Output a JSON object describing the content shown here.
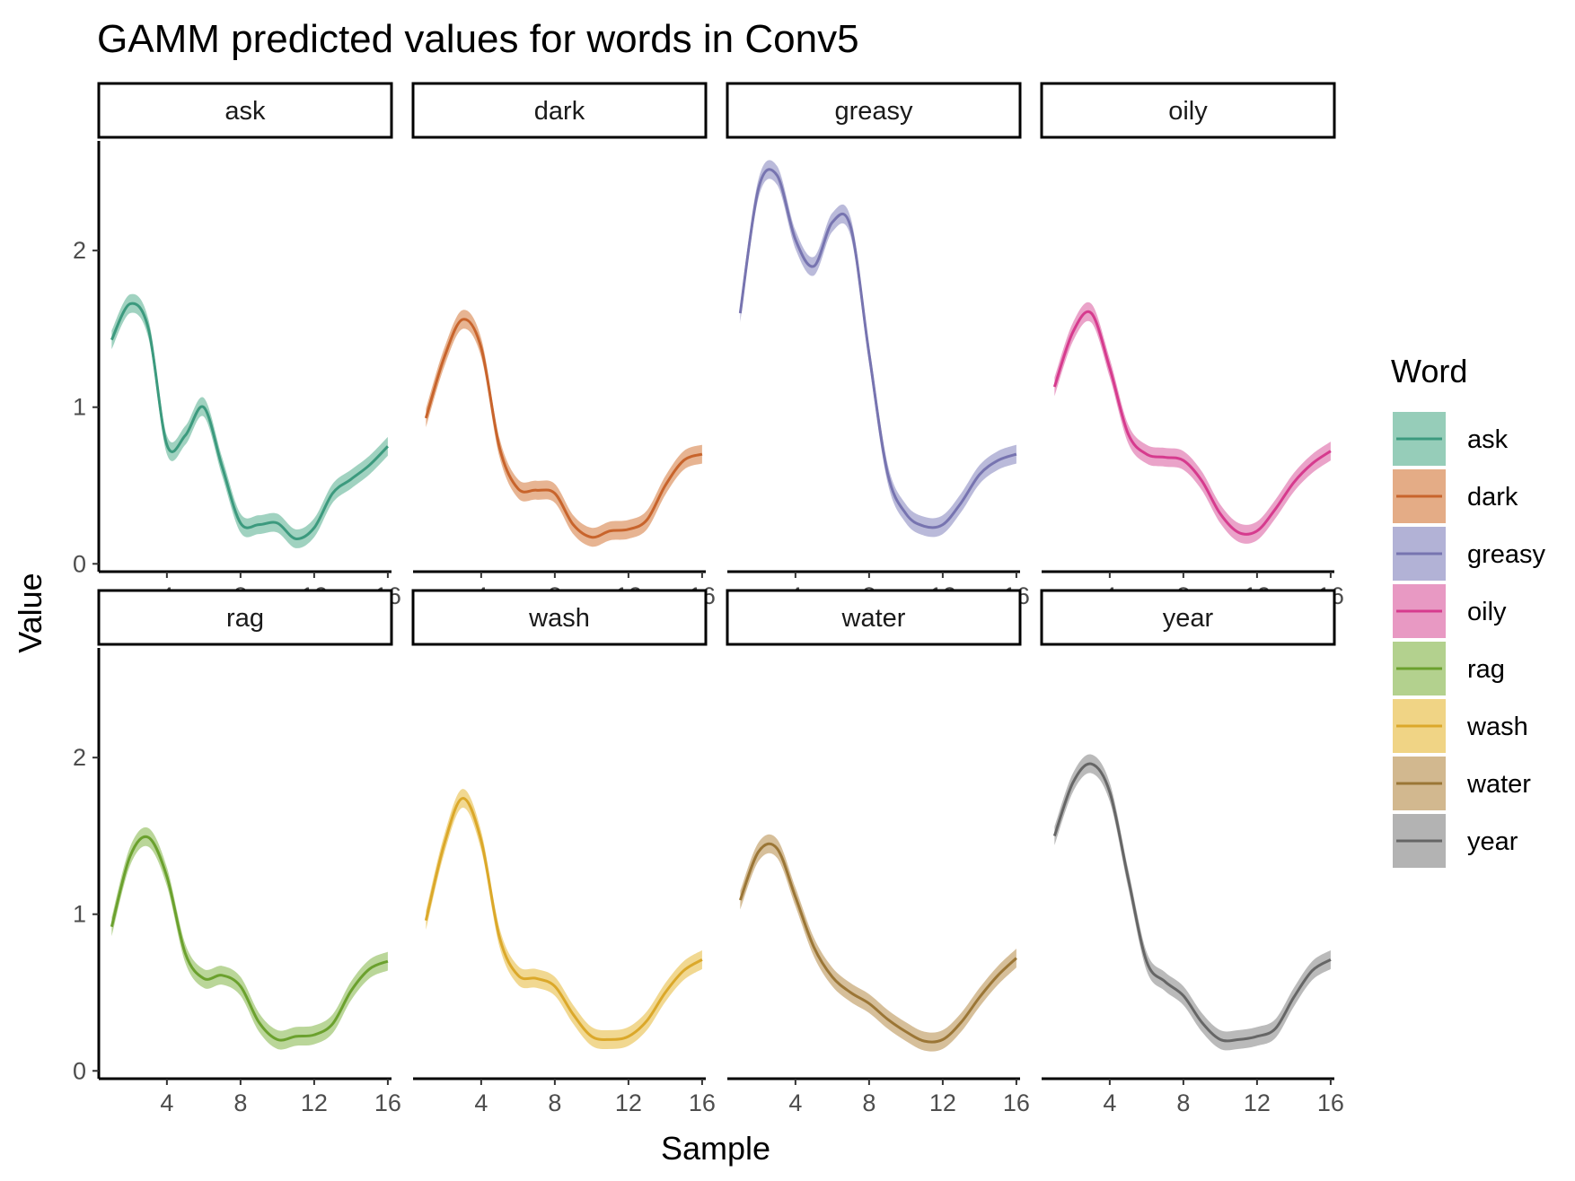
{
  "chart_data": {
    "type": "line",
    "title": "GAMM predicted values for words in Conv5",
    "xlabel": "Sample",
    "ylabel": "Value",
    "xlim": [
      0.3,
      16.2
    ],
    "ylim": [
      -0.05,
      2.7
    ],
    "x_ticks": [
      4,
      8,
      12,
      16
    ],
    "x_tick_labels": [
      "4",
      "8",
      "12",
      "16"
    ],
    "y_ticks": [
      0,
      1,
      2
    ],
    "y_tick_labels": [
      "0",
      "1",
      "2"
    ],
    "grid": false,
    "facets": {
      "rows": 2,
      "cols": 4,
      "shared_axes": true
    },
    "legend": {
      "title": "Word",
      "position": "right"
    },
    "x": [
      1,
      2,
      3,
      4,
      5,
      6,
      7,
      8,
      9,
      10,
      11,
      12,
      13,
      14,
      15,
      16
    ],
    "band_halfwidth": 0.06,
    "series": [
      {
        "name": "ask",
        "line_color": "#3c9a7e",
        "band_color": "#96cdb9",
        "values": [
          1.43,
          1.66,
          1.5,
          0.76,
          0.82,
          1.0,
          0.62,
          0.26,
          0.25,
          0.26,
          0.16,
          0.23,
          0.45,
          0.54,
          0.63,
          0.75
        ]
      },
      {
        "name": "dark",
        "line_color": "#c8642c",
        "band_color": "#e4ac86",
        "values": [
          0.93,
          1.32,
          1.56,
          1.38,
          0.74,
          0.48,
          0.47,
          0.45,
          0.25,
          0.17,
          0.21,
          0.22,
          0.28,
          0.5,
          0.66,
          0.7
        ]
      },
      {
        "name": "greasy",
        "line_color": "#7774b0",
        "band_color": "#b2b2d6",
        "values": [
          1.6,
          2.4,
          2.48,
          2.07,
          1.9,
          2.18,
          2.15,
          1.34,
          0.58,
          0.32,
          0.24,
          0.25,
          0.39,
          0.57,
          0.66,
          0.7
        ]
      },
      {
        "name": "oily",
        "line_color": "#d63b8e",
        "band_color": "#e899c3",
        "values": [
          1.13,
          1.48,
          1.6,
          1.25,
          0.83,
          0.7,
          0.68,
          0.66,
          0.53,
          0.32,
          0.2,
          0.21,
          0.35,
          0.52,
          0.64,
          0.72
        ]
      },
      {
        "name": "rag",
        "line_color": "#6ba12e",
        "band_color": "#b3d18e",
        "values": [
          0.92,
          1.37,
          1.49,
          1.24,
          0.75,
          0.59,
          0.61,
          0.54,
          0.31,
          0.2,
          0.22,
          0.23,
          0.3,
          0.51,
          0.65,
          0.7
        ]
      },
      {
        "name": "wash",
        "line_color": "#dba82a",
        "band_color": "#f0d485",
        "values": [
          0.96,
          1.45,
          1.74,
          1.47,
          0.85,
          0.61,
          0.59,
          0.54,
          0.36,
          0.22,
          0.2,
          0.22,
          0.32,
          0.5,
          0.64,
          0.71
        ]
      },
      {
        "name": "water",
        "line_color": "#9b7636",
        "band_color": "#d2b88f",
        "values": [
          1.09,
          1.4,
          1.42,
          1.11,
          0.79,
          0.6,
          0.5,
          0.43,
          0.33,
          0.25,
          0.19,
          0.2,
          0.31,
          0.47,
          0.61,
          0.72
        ]
      },
      {
        "name": "year",
        "line_color": "#666666",
        "band_color": "#b3b3b3",
        "values": [
          1.5,
          1.84,
          1.96,
          1.78,
          1.23,
          0.7,
          0.57,
          0.48,
          0.31,
          0.2,
          0.2,
          0.22,
          0.27,
          0.47,
          0.64,
          0.71
        ]
      }
    ]
  }
}
